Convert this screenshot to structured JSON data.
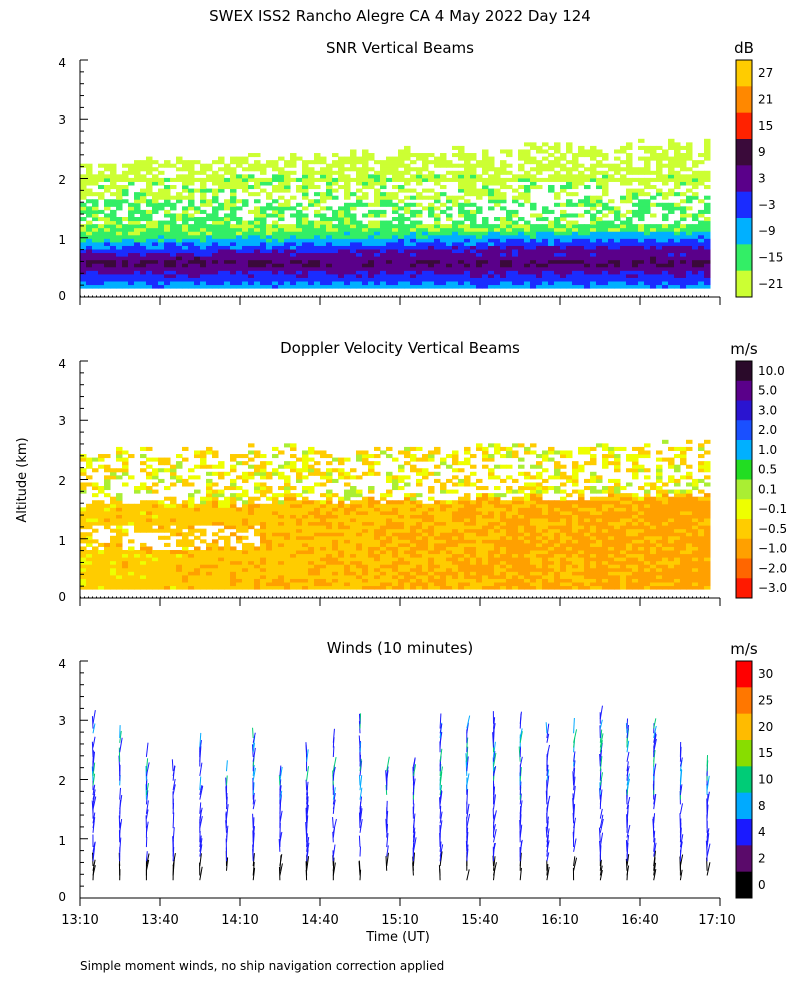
{
  "figure_title": "SWEX ISS2 Rancho Alegre CA   4 May 2022 Day 124",
  "y_axis_label": "Altitude (km)",
  "x_axis_label": "Time (UT)",
  "footnote": "Simple moment winds, no ship navigation correction applied",
  "chart_data": [
    {
      "type": "heatmap",
      "title": "SNR Vertical Beams",
      "ylim": [
        0,
        4
      ],
      "yticks": [
        "0",
        "1",
        "2",
        "3",
        "4"
      ],
      "colorbar_unit": "dB",
      "colorbar_labels": [
        "27",
        "21",
        "15",
        "9",
        "3",
        "−3",
        "−9",
        "−15",
        "−21"
      ],
      "colorbar_colors": [
        "#ffcc00",
        "#ff8800",
        "#ff2200",
        "#3a0a3a",
        "#5a008a",
        "#1a2cff",
        "#00b0ff",
        "#33ee66",
        "#ccff33"
      ]
    },
    {
      "type": "heatmap",
      "title": "Doppler Velocity Vertical Beams",
      "ylim": [
        0,
        4
      ],
      "yticks": [
        "0",
        "1",
        "2",
        "3",
        "4"
      ],
      "colorbar_unit": "m/s",
      "colorbar_labels": [
        "10.0",
        "5.0",
        "3.0",
        "2.0",
        "1.0",
        "0.5",
        "0.1",
        "−0.1",
        "−0.5",
        "−1.0",
        "−2.0",
        "−3.0"
      ],
      "colorbar_colors": [
        "#2a0a2a",
        "#5a008a",
        "#2a14d0",
        "#1a50ff",
        "#00b0ff",
        "#22dd22",
        "#aaee33",
        "#eeff00",
        "#ffcc00",
        "#ffa000",
        "#ff6600",
        "#ff1a00"
      ]
    },
    {
      "type": "scatter",
      "title": "Winds (10 minutes)",
      "ylim": [
        0,
        4
      ],
      "yticks": [
        "0",
        "1",
        "2",
        "3",
        "4"
      ],
      "x_tick_labels": [
        "13:10",
        "13:40",
        "14:10",
        "14:40",
        "15:10",
        "15:40",
        "16:10",
        "16:40",
        "17:10"
      ],
      "colorbar_unit": "m/s",
      "colorbar_labels": [
        "30",
        "25",
        "20",
        "15",
        "10",
        "8",
        "4",
        "2",
        "0"
      ],
      "colorbar_colors": [
        "#ff0000",
        "#ff7700",
        "#ffbb00",
        "#88dd00",
        "#00cc77",
        "#00aaff",
        "#1a1aff",
        "#5a0a6a",
        "#000000"
      ]
    }
  ]
}
